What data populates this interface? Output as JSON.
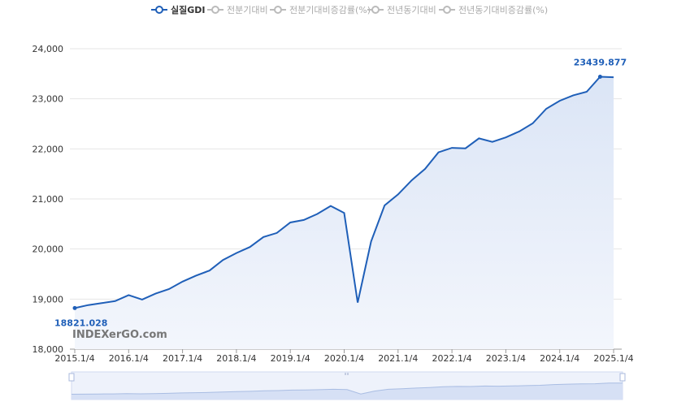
{
  "watermark": "INDEXerGO.com",
  "colors": {
    "primary": "#1f5fb8",
    "inactive": "#bbbbbb",
    "grid": "#e6e6e6",
    "area_top": "#dbe5f6",
    "area_bottom": "#f3f6fc"
  },
  "chart_data": {
    "type": "line",
    "legend": [
      {
        "name": "실질GDI",
        "active": true
      },
      {
        "name": "전분기대비",
        "active": false
      },
      {
        "name": "전분기대비증감률(%)",
        "active": false
      },
      {
        "name": "전년동기대비",
        "active": false
      },
      {
        "name": "전년동기대비증감률(%)",
        "active": false
      }
    ],
    "x_tick_labels": [
      "2015.1/4",
      "2016.1/4",
      "2017.1/4",
      "2018.1/4",
      "2019.1/4",
      "2020.1/4",
      "2021.1/4",
      "2022.1/4",
      "2023.1/4",
      "2024.1/4",
      "2025.1/4"
    ],
    "y_tick_labels": [
      "18,000",
      "19,000",
      "20,000",
      "21,000",
      "22,000",
      "23,000",
      "24,000"
    ],
    "y_ticks": [
      18000,
      19000,
      20000,
      21000,
      22000,
      23000,
      24000
    ],
    "ylim": [
      18000,
      24000
    ],
    "series": [
      {
        "name": "실질GDI",
        "x": [
          "2015.1/4",
          "2015.2/4",
          "2015.3/4",
          "2015.4/4",
          "2016.1/4",
          "2016.2/4",
          "2016.3/4",
          "2016.4/4",
          "2017.1/4",
          "2017.2/4",
          "2017.3/4",
          "2017.4/4",
          "2018.1/4",
          "2018.2/4",
          "2018.3/4",
          "2018.4/4",
          "2019.1/4",
          "2019.2/4",
          "2019.3/4",
          "2019.4/4",
          "2020.1/4",
          "2020.2/4",
          "2020.3/4",
          "2020.4/4",
          "2021.1/4",
          "2021.2/4",
          "2021.3/4",
          "2021.4/4",
          "2022.1/4",
          "2022.2/4",
          "2022.3/4",
          "2022.4/4",
          "2023.1/4",
          "2023.2/4",
          "2023.3/4",
          "2023.4/4",
          "2024.1/4",
          "2024.2/4",
          "2024.3/4",
          "2024.4/4",
          "2025.1/4"
        ],
        "values": [
          18821.028,
          18880,
          18920,
          18960,
          19080,
          18990,
          19110,
          19200,
          19350,
          19470,
          19570,
          19780,
          19920,
          20040,
          20240,
          20320,
          20530,
          20580,
          20700,
          20860,
          20720,
          18930,
          20150,
          20870,
          21090,
          21370,
          21600,
          21930,
          22020,
          22010,
          22210,
          22140,
          22230,
          22350,
          22510,
          22800,
          22960,
          23070,
          23140,
          23439.877,
          23430
        ]
      }
    ],
    "annotations": [
      {
        "x": "2015.1/4",
        "value": 18821.028,
        "label": "18821.028"
      },
      {
        "x": "2024.4/4",
        "value": 23439.877,
        "label": "23439.877"
      }
    ]
  }
}
